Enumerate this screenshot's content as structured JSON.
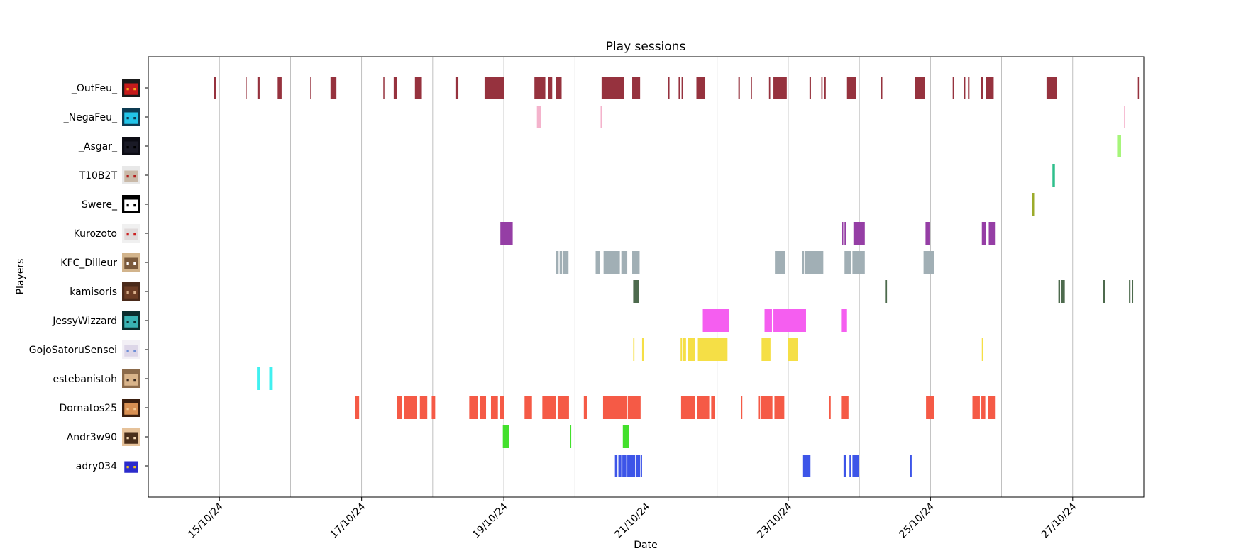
{
  "chart_data": {
    "type": "timeline",
    "title": "Play sessions",
    "xlabel": "Date",
    "ylabel": "Players",
    "x_axis": {
      "type": "date",
      "range": [
        "2024-10-14T00:00",
        "2024-10-28T00:00"
      ]
    },
    "x_ticks": [
      {
        "date": "2024-10-15",
        "label": "15/10/24"
      },
      {
        "date": "2024-10-17",
        "label": "17/10/24"
      },
      {
        "date": "2024-10-19",
        "label": "19/10/24"
      },
      {
        "date": "2024-10-21",
        "label": "21/10/24"
      },
      {
        "date": "2024-10-23",
        "label": "23/10/24"
      },
      {
        "date": "2024-10-25",
        "label": "25/10/24"
      },
      {
        "date": "2024-10-27",
        "label": "27/10/24"
      }
    ],
    "grid": {
      "vertical": true,
      "interval_days": 1
    },
    "legend": "none",
    "players": [
      {
        "name": "_OutFeu_",
        "color": "#96323e",
        "avatar_icon": "avatar-fire-icon",
        "sessions": [
          [
            "2024-10-14T22:10",
            "2024-10-14T22:50"
          ],
          [
            "2024-10-15T08:50",
            "2024-10-15T09:10"
          ],
          [
            "2024-10-15T12:50",
            "2024-10-15T13:35"
          ],
          [
            "2024-10-15T19:40",
            "2024-10-15T21:00"
          ],
          [
            "2024-10-16T06:40",
            "2024-10-16T07:00"
          ],
          [
            "2024-10-16T13:30",
            "2024-10-16T15:30"
          ],
          [
            "2024-10-17T07:20",
            "2024-10-17T07:40"
          ],
          [
            "2024-10-17T10:50",
            "2024-10-17T11:50"
          ],
          [
            "2024-10-17T18:00",
            "2024-10-17T20:20"
          ],
          [
            "2024-10-18T07:40",
            "2024-10-18T08:40"
          ],
          [
            "2024-10-18T17:30",
            "2024-10-19T00:00"
          ],
          [
            "2024-10-19T10:20",
            "2024-10-19T14:00"
          ],
          [
            "2024-10-19T15:00",
            "2024-10-19T16:20"
          ],
          [
            "2024-10-19T17:30",
            "2024-10-19T19:30"
          ],
          [
            "2024-10-20T09:00",
            "2024-10-20T16:40"
          ],
          [
            "2024-10-20T19:20",
            "2024-10-20T22:00"
          ],
          [
            "2024-10-21T07:30",
            "2024-10-21T07:55"
          ],
          [
            "2024-10-21T11:00",
            "2024-10-21T11:25"
          ],
          [
            "2024-10-21T12:00",
            "2024-10-21T12:30"
          ],
          [
            "2024-10-21T17:00",
            "2024-10-21T20:00"
          ],
          [
            "2024-10-22T07:10",
            "2024-10-22T07:40"
          ],
          [
            "2024-10-22T11:20",
            "2024-10-22T11:45"
          ],
          [
            "2024-10-22T17:30",
            "2024-10-22T17:55"
          ],
          [
            "2024-10-22T19:00",
            "2024-10-22T23:30"
          ],
          [
            "2024-10-23T07:10",
            "2024-10-23T07:40"
          ],
          [
            "2024-10-23T11:10",
            "2024-10-23T11:35"
          ],
          [
            "2024-10-23T12:10",
            "2024-10-23T12:40"
          ],
          [
            "2024-10-23T19:50",
            "2024-10-23T23:00"
          ],
          [
            "2024-10-24T07:20",
            "2024-10-24T07:45"
          ],
          [
            "2024-10-24T18:40",
            "2024-10-24T22:00"
          ],
          [
            "2024-10-25T07:30",
            "2024-10-25T07:50"
          ],
          [
            "2024-10-25T11:20",
            "2024-10-25T11:45"
          ],
          [
            "2024-10-25T12:40",
            "2024-10-25T13:10"
          ],
          [
            "2024-10-25T17:00",
            "2024-10-25T17:40"
          ],
          [
            "2024-10-25T18:50",
            "2024-10-25T21:20"
          ],
          [
            "2024-10-26T15:10",
            "2024-10-26T18:40"
          ],
          [
            "2024-10-27T22:00",
            "2024-10-27T22:20"
          ]
        ]
      },
      {
        "name": "_NegaFeu_",
        "color": "#f4b3cc",
        "avatar_icon": "avatar-cyan-icon",
        "sessions": [
          [
            "2024-10-19T11:10",
            "2024-10-19T12:40"
          ],
          [
            "2024-10-20T08:40",
            "2024-10-20T09:05"
          ],
          [
            "2024-10-27T17:20",
            "2024-10-27T17:45"
          ]
        ]
      },
      {
        "name": "_Asgar_",
        "color": "#a6f57a",
        "avatar_icon": "avatar-dark-icon",
        "sessions": [
          [
            "2024-10-27T15:00",
            "2024-10-27T16:20"
          ]
        ]
      },
      {
        "name": "T10B2T",
        "color": "#2fbf8c",
        "avatar_icon": "avatar-white-hair-icon",
        "sessions": [
          [
            "2024-10-26T17:10",
            "2024-10-26T18:00"
          ]
        ]
      },
      {
        "name": "Swere_",
        "color": "#9cab2b",
        "avatar_icon": "avatar-black-icon",
        "sessions": [
          [
            "2024-10-26T10:10",
            "2024-10-26T11:00"
          ]
        ]
      },
      {
        "name": "Kurozoto",
        "color": "#953ea5",
        "avatar_icon": "avatar-white-red-eyes-icon",
        "sessions": [
          [
            "2024-10-18T22:50",
            "2024-10-19T03:00"
          ],
          [
            "2024-10-23T18:10",
            "2024-10-23T18:35"
          ],
          [
            "2024-10-23T19:00",
            "2024-10-23T19:25"
          ],
          [
            "2024-10-23T22:00",
            "2024-10-24T01:50"
          ],
          [
            "2024-10-24T22:20",
            "2024-10-24T23:40"
          ],
          [
            "2024-10-25T17:20",
            "2024-10-25T18:50"
          ],
          [
            "2024-10-25T19:40",
            "2024-10-25T22:00"
          ]
        ]
      },
      {
        "name": "KFC_Dilleur",
        "color": "#a1afb5",
        "avatar_icon": "avatar-tan-icon",
        "sessions": [
          [
            "2024-10-19T17:40",
            "2024-10-19T18:30"
          ],
          [
            "2024-10-19T18:50",
            "2024-10-19T19:40"
          ],
          [
            "2024-10-19T20:00",
            "2024-10-19T21:50"
          ],
          [
            "2024-10-20T07:00",
            "2024-10-20T08:20"
          ],
          [
            "2024-10-20T09:40",
            "2024-10-20T15:10"
          ],
          [
            "2024-10-20T15:40",
            "2024-10-20T17:40"
          ],
          [
            "2024-10-20T19:20",
            "2024-10-20T21:50"
          ],
          [
            "2024-10-22T19:30",
            "2024-10-22T22:50"
          ],
          [
            "2024-10-23T04:40",
            "2024-10-23T05:20"
          ],
          [
            "2024-10-23T05:40",
            "2024-10-23T11:50"
          ],
          [
            "2024-10-23T19:00",
            "2024-10-23T21:20"
          ],
          [
            "2024-10-23T21:40",
            "2024-10-24T01:50"
          ],
          [
            "2024-10-24T21:40",
            "2024-10-25T01:20"
          ]
        ]
      },
      {
        "name": "kamisoris",
        "color": "#4d6a4d",
        "avatar_icon": "avatar-brown-icon",
        "sessions": [
          [
            "2024-10-20T19:40",
            "2024-10-20T21:40"
          ],
          [
            "2024-10-24T08:40",
            "2024-10-24T09:20"
          ],
          [
            "2024-10-26T19:10",
            "2024-10-26T19:45"
          ],
          [
            "2024-10-26T20:00",
            "2024-10-26T21:20"
          ],
          [
            "2024-10-27T10:20",
            "2024-10-27T10:50"
          ],
          [
            "2024-10-27T19:00",
            "2024-10-27T19:30"
          ],
          [
            "2024-10-27T20:00",
            "2024-10-27T20:25"
          ]
        ]
      },
      {
        "name": "JessyWizzard",
        "color": "#f55ef0",
        "avatar_icon": "avatar-teal-icon",
        "sessions": [
          [
            "2024-10-21T19:10",
            "2024-10-22T04:00"
          ],
          [
            "2024-10-22T16:00",
            "2024-10-22T18:30"
          ],
          [
            "2024-10-22T19:00",
            "2024-10-23T06:00"
          ],
          [
            "2024-10-23T17:50",
            "2024-10-23T19:50"
          ]
        ]
      },
      {
        "name": "GojoSatoruSensei",
        "color": "#f5df46",
        "avatar_icon": "avatar-white-blue-eyes-icon",
        "sessions": [
          [
            "2024-10-20T19:40",
            "2024-10-20T20:05"
          ],
          [
            "2024-10-20T22:40",
            "2024-10-20T23:10"
          ],
          [
            "2024-10-21T11:40",
            "2024-10-21T12:10"
          ],
          [
            "2024-10-21T12:30",
            "2024-10-21T13:30"
          ],
          [
            "2024-10-21T14:10",
            "2024-10-21T16:30"
          ],
          [
            "2024-10-21T17:30",
            "2024-10-22T03:30"
          ],
          [
            "2024-10-22T15:00",
            "2024-10-22T18:00"
          ],
          [
            "2024-10-23T00:00",
            "2024-10-23T03:10"
          ],
          [
            "2024-10-25T17:20",
            "2024-10-25T17:45"
          ]
        ]
      },
      {
        "name": "estebanistoh",
        "color": "#41f0f0",
        "avatar_icon": "avatar-tan-hat-icon",
        "sessions": [
          [
            "2024-10-15T12:40",
            "2024-10-15T13:50"
          ],
          [
            "2024-10-15T16:50",
            "2024-10-15T18:00"
          ]
        ]
      },
      {
        "name": "Dornatos25",
        "color": "#f55a46",
        "avatar_icon": "avatar-orange-icon",
        "sessions": [
          [
            "2024-10-16T21:50",
            "2024-10-16T23:10"
          ],
          [
            "2024-10-17T12:00",
            "2024-10-17T13:30"
          ],
          [
            "2024-10-17T14:20",
            "2024-10-17T18:40"
          ],
          [
            "2024-10-17T19:40",
            "2024-10-17T22:10"
          ],
          [
            "2024-10-17T23:40",
            "2024-10-18T00:50"
          ],
          [
            "2024-10-18T12:20",
            "2024-10-18T15:20"
          ],
          [
            "2024-10-18T15:50",
            "2024-10-18T18:00"
          ],
          [
            "2024-10-18T19:40",
            "2024-10-18T22:00"
          ],
          [
            "2024-10-18T22:40",
            "2024-10-19T00:10"
          ],
          [
            "2024-10-19T07:00",
            "2024-10-19T09:30"
          ],
          [
            "2024-10-19T13:00",
            "2024-10-19T17:40"
          ],
          [
            "2024-10-19T18:10",
            "2024-10-19T22:00"
          ],
          [
            "2024-10-20T03:00",
            "2024-10-20T04:00"
          ],
          [
            "2024-10-20T09:30",
            "2024-10-20T17:30"
          ],
          [
            "2024-10-20T17:50",
            "2024-10-20T21:30"
          ],
          [
            "2024-10-20T21:40",
            "2024-10-20T22:10"
          ],
          [
            "2024-10-21T11:50",
            "2024-10-21T16:30"
          ],
          [
            "2024-10-21T17:10",
            "2024-10-21T21:20"
          ],
          [
            "2024-10-21T22:00",
            "2024-10-21T23:10"
          ],
          [
            "2024-10-22T08:00",
            "2024-10-22T08:30"
          ],
          [
            "2024-10-22T13:50",
            "2024-10-22T14:30"
          ],
          [
            "2024-10-22T14:50",
            "2024-10-22T18:40"
          ],
          [
            "2024-10-22T19:20",
            "2024-10-22T22:40"
          ],
          [
            "2024-10-23T13:40",
            "2024-10-23T14:20"
          ],
          [
            "2024-10-23T17:50",
            "2024-10-23T20:20"
          ],
          [
            "2024-10-24T22:30",
            "2024-10-25T01:00"
          ],
          [
            "2024-10-25T00:00",
            "2024-10-25T01:20"
          ],
          [
            "2024-10-25T14:10",
            "2024-10-25T16:40"
          ],
          [
            "2024-10-25T17:10",
            "2024-10-25T18:30"
          ],
          [
            "2024-10-25T19:20",
            "2024-10-25T22:00"
          ]
        ]
      },
      {
        "name": "Andr3w90",
        "color": "#43e02c",
        "avatar_icon": "avatar-tan-brown-icon",
        "sessions": [
          [
            "2024-10-18T23:40",
            "2024-10-19T01:50"
          ],
          [
            "2024-10-19T22:20",
            "2024-10-19T22:45"
          ],
          [
            "2024-10-20T16:10",
            "2024-10-20T18:20"
          ]
        ]
      },
      {
        "name": "adry034",
        "color": "#3d55e8",
        "avatar_icon": "avatar-multicolor-icon",
        "sessions": [
          [
            "2024-10-20T13:30",
            "2024-10-20T14:20"
          ],
          [
            "2024-10-20T14:40",
            "2024-10-20T15:40"
          ],
          [
            "2024-10-20T16:00",
            "2024-10-20T17:20"
          ],
          [
            "2024-10-20T17:40",
            "2024-10-20T20:20"
          ],
          [
            "2024-10-20T20:40",
            "2024-10-20T22:00"
          ],
          [
            "2024-10-20T22:10",
            "2024-10-20T22:40"
          ],
          [
            "2024-10-23T05:00",
            "2024-10-23T07:30"
          ],
          [
            "2024-10-23T18:40",
            "2024-10-23T19:30"
          ],
          [
            "2024-10-23T20:40",
            "2024-10-23T21:20"
          ],
          [
            "2024-10-23T21:40",
            "2024-10-23T23:50"
          ],
          [
            "2024-10-24T17:10",
            "2024-10-24T17:40"
          ]
        ]
      }
    ]
  }
}
